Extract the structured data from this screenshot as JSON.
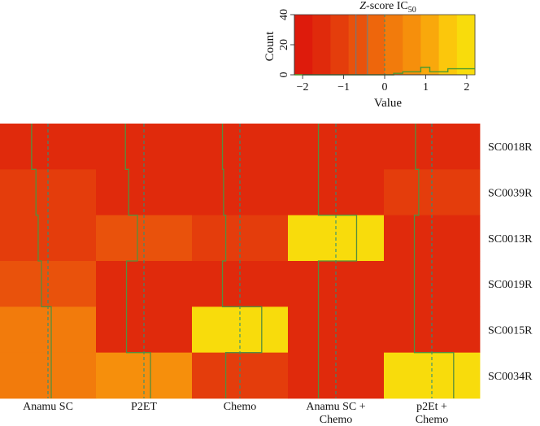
{
  "chart_data": {
    "type": "heatmap",
    "rows": [
      "SC0018R",
      "SC0039R",
      "SC0013R",
      "SC0019R",
      "SC0015R",
      "SC0034R"
    ],
    "columns": [
      {
        "line1": "Anamu SC",
        "line2": ""
      },
      {
        "line1": "P2ET",
        "line2": ""
      },
      {
        "line1": "Chemo",
        "line2": ""
      },
      {
        "line1": "Anamu SC +",
        "line2": "Chemo"
      },
      {
        "line1": "p2Et +",
        "line2": "Chemo"
      }
    ],
    "values": [
      [
        -1.5,
        -1.7,
        -1.6,
        -1.6,
        -1.5
      ],
      [
        -1.1,
        -1.4,
        -1.5,
        -1.6,
        -1.2
      ],
      [
        -0.9,
        -0.6,
        -1.3,
        1.9,
        -1.6
      ],
      [
        -0.6,
        -1.6,
        -1.6,
        -1.6,
        -1.6
      ],
      [
        0.3,
        -1.6,
        2.0,
        -1.6,
        -1.6
      ],
      [
        0.3,
        0.6,
        -1.3,
        -1.6,
        2.0
      ]
    ],
    "trace_center": 0,
    "key": {
      "title_italic": "Z",
      "title_rest": "-score IC",
      "title_sub": "50",
      "xlabel": "Value",
      "ylabel": "Count",
      "xlim": [
        -2.2,
        2.2
      ],
      "ylim": [
        0,
        40
      ],
      "xticks": [
        -2,
        -1,
        0,
        1,
        2
      ],
      "yticks": [
        0,
        20,
        40
      ],
      "colors": [
        "#DE1B0C",
        "#E02A0C",
        "#E43D0C",
        "#E9520C",
        "#EE660C",
        "#F27B0C",
        "#F68F0C",
        "#F9A80C",
        "#FBC70C",
        "#F8DC0C"
      ],
      "histogram": [
        0,
        0,
        0,
        0,
        0,
        0,
        0,
        0,
        0,
        0,
        0,
        1,
        2,
        2,
        5,
        2,
        2,
        4,
        4,
        4
      ]
    },
    "colors": {
      "trace": "#4E9A2E",
      "center_line": "#2F8F7A"
    }
  }
}
